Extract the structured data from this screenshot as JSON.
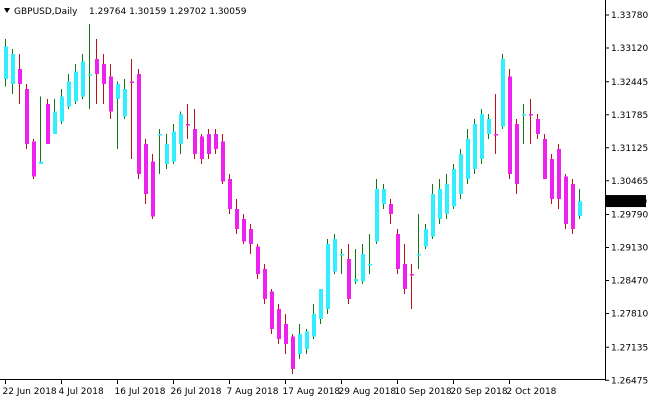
{
  "header": {
    "symbol": "GBPUSD,Daily",
    "ohlc": "1.29764 1.30159 1.29702 1.30059"
  },
  "chart_data": {
    "type": "bar",
    "ylim": [
      1.2648,
      1.3408
    ],
    "y_ticks": [
      "1.33780",
      "1.33120",
      "1.32445",
      "1.31785",
      "1.31125",
      "1.30465",
      "1.29790",
      "1.29130",
      "1.28470",
      "1.27810",
      "1.27135",
      "1.26475"
    ],
    "x_labels": [
      "22 Jun 2018",
      "4 Jul 2018",
      "16 Jul 2018",
      "26 Jul 2018",
      "7 Aug 2018",
      "17 Aug 2018",
      "29 Aug 2018",
      "10 Sep 2018",
      "20 Sep 2018",
      "2 Oct 2018"
    ],
    "current_price": "1.30059",
    "grid": false,
    "colors": {
      "bull_heiken": "#33EEFF",
      "bear_heiken": "#EE22EE",
      "bull_wick": "#117711",
      "bear_wick": "#BB1111",
      "price_box": "#000000",
      "price_text": "#FFFFFF"
    },
    "bars": [
      {
        "high": 1.333,
        "low": 1.3235,
        "bo": 1.325,
        "bc": 1.3315,
        "dir": "up"
      },
      {
        "high": 1.331,
        "low": 1.322,
        "bo": 1.33,
        "bc": 1.324,
        "dir": "up"
      },
      {
        "high": 1.33,
        "low": 1.32,
        "bo": 1.327,
        "bc": 1.324,
        "dir": "down"
      },
      {
        "high": 1.324,
        "low": 1.311,
        "bo": 1.323,
        "bc": 1.312,
        "dir": "down"
      },
      {
        "high": 1.313,
        "low": 1.305,
        "bo": 1.3125,
        "bc": 1.3055,
        "dir": "down"
      },
      {
        "high": 1.3215,
        "low": 1.308,
        "bo": 1.308,
        "bc": 1.3085,
        "dir": "up"
      },
      {
        "high": 1.321,
        "low": 1.312,
        "bo": 1.32,
        "bc": 1.312,
        "dir": "down"
      },
      {
        "high": 1.321,
        "low": 1.314,
        "bo": 1.314,
        "bc": 1.3185,
        "dir": "up"
      },
      {
        "high": 1.323,
        "low": 1.316,
        "bo": 1.3165,
        "bc": 1.3215,
        "dir": "up"
      },
      {
        "high": 1.326,
        "low": 1.319,
        "bo": 1.3195,
        "bc": 1.3245,
        "dir": "up"
      },
      {
        "high": 1.328,
        "low": 1.32,
        "bo": 1.3205,
        "bc": 1.3265,
        "dir": "up"
      },
      {
        "high": 1.33,
        "low": 1.321,
        "bo": 1.3215,
        "bc": 1.3285,
        "dir": "up"
      },
      {
        "high": 1.336,
        "low": 1.319,
        "bo": 1.326,
        "bc": 1.326,
        "dir": "up"
      },
      {
        "high": 1.333,
        "low": 1.32,
        "bo": 1.329,
        "bc": 1.326,
        "dir": "down"
      },
      {
        "high": 1.33,
        "low": 1.32,
        "bo": 1.328,
        "bc": 1.324,
        "dir": "down"
      },
      {
        "high": 1.328,
        "low": 1.317,
        "bo": 1.3255,
        "bc": 1.3185,
        "dir": "down"
      },
      {
        "high": 1.3245,
        "low": 1.311,
        "bo": 1.324,
        "bc": 1.321,
        "dir": "up"
      },
      {
        "high": 1.325,
        "low": 1.317,
        "bo": 1.3175,
        "bc": 1.323,
        "dir": "up"
      },
      {
        "high": 1.329,
        "low": 1.309,
        "bo": 1.3245,
        "bc": 1.3245,
        "dir": "down"
      },
      {
        "high": 1.327,
        "low": 1.305,
        "bo": 1.326,
        "bc": 1.306,
        "dir": "down"
      },
      {
        "high": 1.313,
        "low": 1.3,
        "bo": 1.312,
        "bc": 1.302,
        "dir": "down"
      },
      {
        "high": 1.31,
        "low": 1.297,
        "bo": 1.3085,
        "bc": 1.2975,
        "dir": "down"
      },
      {
        "high": 1.315,
        "low": 1.306,
        "bo": 1.314,
        "bc": 1.314,
        "dir": "up"
      },
      {
        "high": 1.314,
        "low": 1.307,
        "bo": 1.308,
        "bc": 1.312,
        "dir": "up"
      },
      {
        "high": 1.316,
        "low": 1.308,
        "bo": 1.3085,
        "bc": 1.3145,
        "dir": "up"
      },
      {
        "high": 1.3185,
        "low": 1.31,
        "bo": 1.312,
        "bc": 1.318,
        "dir": "up"
      },
      {
        "high": 1.32,
        "low": 1.313,
        "bo": 1.316,
        "bc": 1.316,
        "dir": "down"
      },
      {
        "high": 1.319,
        "low": 1.309,
        "bo": 1.315,
        "bc": 1.31,
        "dir": "down"
      },
      {
        "high": 1.314,
        "low": 1.308,
        "bo": 1.3135,
        "bc": 1.309,
        "dir": "down"
      },
      {
        "high": 1.315,
        "low": 1.309,
        "bo": 1.314,
        "bc": 1.31,
        "dir": "down"
      },
      {
        "high": 1.315,
        "low": 1.31,
        "bo": 1.314,
        "bc": 1.311,
        "dir": "down"
      },
      {
        "high": 1.314,
        "low": 1.304,
        "bo": 1.3125,
        "bc": 1.3045,
        "dir": "down"
      },
      {
        "high": 1.306,
        "low": 1.298,
        "bo": 1.305,
        "bc": 1.299,
        "dir": "down"
      },
      {
        "high": 1.301,
        "low": 1.294,
        "bo": 1.299,
        "bc": 1.295,
        "dir": "down"
      },
      {
        "high": 1.298,
        "low": 1.292,
        "bo": 1.297,
        "bc": 1.2925,
        "dir": "down"
      },
      {
        "high": 1.296,
        "low": 1.29,
        "bo": 1.295,
        "bc": 1.292,
        "dir": "down"
      },
      {
        "high": 1.292,
        "low": 1.285,
        "bo": 1.2915,
        "bc": 1.286,
        "dir": "down"
      },
      {
        "high": 1.288,
        "low": 1.28,
        "bo": 1.287,
        "bc": 1.281,
        "dir": "down"
      },
      {
        "high": 1.283,
        "low": 1.274,
        "bo": 1.2825,
        "bc": 1.275,
        "dir": "down"
      },
      {
        "high": 1.28,
        "low": 1.272,
        "bo": 1.279,
        "bc": 1.273,
        "dir": "down"
      },
      {
        "high": 1.278,
        "low": 1.27,
        "bo": 1.276,
        "bc": 1.272,
        "dir": "down"
      },
      {
        "high": 1.274,
        "low": 1.266,
        "bo": 1.2735,
        "bc": 1.267,
        "dir": "down"
      },
      {
        "high": 1.276,
        "low": 1.269,
        "bo": 1.27,
        "bc": 1.274,
        "dir": "up"
      },
      {
        "high": 1.275,
        "low": 1.27,
        "bo": 1.271,
        "bc": 1.2745,
        "dir": "up"
      },
      {
        "high": 1.28,
        "low": 1.273,
        "bo": 1.2735,
        "bc": 1.278,
        "dir": "up"
      },
      {
        "high": 1.283,
        "low": 1.276,
        "bo": 1.277,
        "bc": 1.283,
        "dir": "up"
      },
      {
        "high": 1.293,
        "low": 1.278,
        "bo": 1.279,
        "bc": 1.292,
        "dir": "up"
      },
      {
        "high": 1.294,
        "low": 1.286,
        "bo": 1.2865,
        "bc": 1.293,
        "dir": "up"
      },
      {
        "high": 1.291,
        "low": 1.286,
        "bo": 1.29,
        "bc": 1.29,
        "dir": "up"
      },
      {
        "high": 1.292,
        "low": 1.28,
        "bo": 1.289,
        "bc": 1.281,
        "dir": "down"
      },
      {
        "high": 1.291,
        "low": 1.284,
        "bo": 1.2845,
        "bc": 1.285,
        "dir": "up"
      },
      {
        "high": 1.292,
        "low": 1.284,
        "bo": 1.2845,
        "bc": 1.29,
        "dir": "up"
      },
      {
        "high": 1.294,
        "low": 1.286,
        "bo": 1.288,
        "bc": 1.288,
        "dir": "up"
      },
      {
        "high": 1.305,
        "low": 1.292,
        "bo": 1.2925,
        "bc": 1.303,
        "dir": "up"
      },
      {
        "high": 1.304,
        "low": 1.299,
        "bo": 1.3,
        "bc": 1.303,
        "dir": "up"
      },
      {
        "high": 1.301,
        "low": 1.296,
        "bo": 1.3,
        "bc": 1.298,
        "dir": "down"
      },
      {
        "high": 1.295,
        "low": 1.286,
        "bo": 1.294,
        "bc": 1.287,
        "dir": "down"
      },
      {
        "high": 1.292,
        "low": 1.282,
        "bo": 1.288,
        "bc": 1.283,
        "dir": "down"
      },
      {
        "high": 1.288,
        "low": 1.279,
        "bo": 1.286,
        "bc": 1.286,
        "dir": "down"
      },
      {
        "high": 1.298,
        "low": 1.287,
        "bo": 1.29,
        "bc": 1.29,
        "dir": "up"
      },
      {
        "high": 1.296,
        "low": 1.291,
        "bo": 1.2915,
        "bc": 1.295,
        "dir": "up"
      },
      {
        "high": 1.304,
        "low": 1.293,
        "bo": 1.2935,
        "bc": 1.302,
        "dir": "up"
      },
      {
        "high": 1.305,
        "low": 1.296,
        "bo": 1.297,
        "bc": 1.303,
        "dir": "up"
      },
      {
        "high": 1.306,
        "low": 1.297,
        "bo": 1.298,
        "bc": 1.304,
        "dir": "up"
      },
      {
        "high": 1.308,
        "low": 1.299,
        "bo": 1.2995,
        "bc": 1.307,
        "dir": "up"
      },
      {
        "high": 1.311,
        "low": 1.301,
        "bo": 1.302,
        "bc": 1.31,
        "dir": "up"
      },
      {
        "high": 1.315,
        "low": 1.304,
        "bo": 1.305,
        "bc": 1.313,
        "dir": "up"
      },
      {
        "high": 1.317,
        "low": 1.306,
        "bo": 1.307,
        "bc": 1.316,
        "dir": "up"
      },
      {
        "high": 1.319,
        "low": 1.308,
        "bo": 1.309,
        "bc": 1.318,
        "dir": "up"
      },
      {
        "high": 1.318,
        "low": 1.313,
        "bo": 1.314,
        "bc": 1.317,
        "dir": "up"
      },
      {
        "high": 1.322,
        "low": 1.31,
        "bo": 1.314,
        "bc": 1.314,
        "dir": "down"
      },
      {
        "high": 1.33,
        "low": 1.315,
        "bo": 1.3155,
        "bc": 1.329,
        "dir": "up"
      },
      {
        "high": 1.327,
        "low": 1.305,
        "bo": 1.3255,
        "bc": 1.306,
        "dir": "down"
      },
      {
        "high": 1.317,
        "low": 1.302,
        "bo": 1.316,
        "bc": 1.304,
        "dir": "down"
      },
      {
        "high": 1.32,
        "low": 1.312,
        "bo": 1.318,
        "bc": 1.318,
        "dir": "up"
      },
      {
        "high": 1.321,
        "low": 1.312,
        "bo": 1.318,
        "bc": 1.318,
        "dir": "down"
      },
      {
        "high": 1.318,
        "low": 1.313,
        "bo": 1.317,
        "bc": 1.314,
        "dir": "down"
      },
      {
        "high": 1.314,
        "low": 1.305,
        "bo": 1.313,
        "bc": 1.305,
        "dir": "down"
      },
      {
        "high": 1.31,
        "low": 1.3,
        "bo": 1.309,
        "bc": 1.301,
        "dir": "down"
      },
      {
        "high": 1.312,
        "low": 1.299,
        "bo": 1.311,
        "bc": 1.301,
        "dir": "down"
      },
      {
        "high": 1.306,
        "low": 1.295,
        "bo": 1.3055,
        "bc": 1.296,
        "dir": "down"
      },
      {
        "high": 1.305,
        "low": 1.294,
        "bo": 1.304,
        "bc": 1.295,
        "dir": "down"
      },
      {
        "high": 1.303,
        "low": 1.297,
        "bo": 1.2976,
        "bc": 1.3006,
        "dir": "up"
      }
    ]
  }
}
